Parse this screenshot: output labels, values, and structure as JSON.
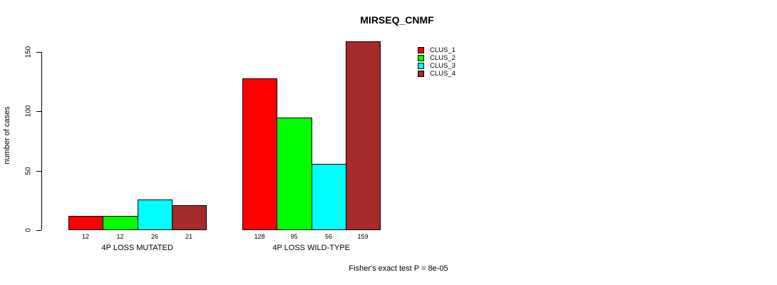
{
  "title": "MIRSEQ_CNMF",
  "chart_data": {
    "type": "bar",
    "title": "MIRSEQ_CNMF",
    "xlabel": "",
    "ylabel": "number of cases",
    "ylim": [
      0,
      150
    ],
    "yticks": [
      "0",
      "50",
      "100",
      "150"
    ],
    "grid": false,
    "legend_position": "top-right",
    "categories": [
      "4P LOSS MUTATED",
      "4P LOSS WILD-TYPE"
    ],
    "series": [
      {
        "name": "CLUS_1",
        "color": "#FF0000",
        "values": [
          12,
          128
        ]
      },
      {
        "name": "CLUS_2",
        "color": "#00FF00",
        "values": [
          12,
          95
        ]
      },
      {
        "name": "CLUS_3",
        "color": "#00FFFF",
        "values": [
          26,
          56
        ]
      },
      {
        "name": "CLUS_4",
        "color": "#A52A2A",
        "values": [
          21,
          159
        ]
      }
    ],
    "bar_labels": [
      [
        "12",
        "12",
        "26",
        "21"
      ],
      [
        "128",
        "95",
        "56",
        "159"
      ]
    ],
    "annotation": "Fisher's exact test P = 8e-05"
  }
}
